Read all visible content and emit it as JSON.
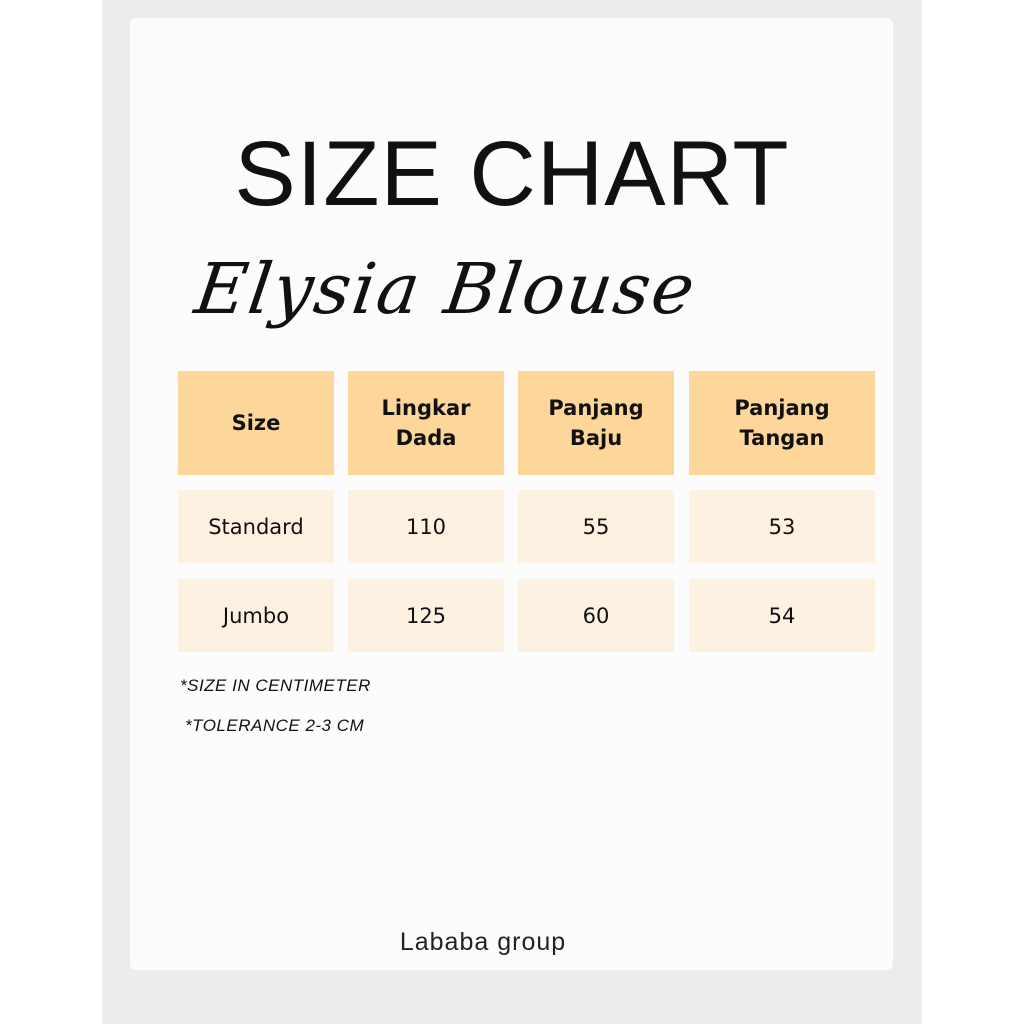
{
  "title": "SIZE CHART",
  "product_name": "Elysia Blouse",
  "table": {
    "headers": [
      "Size",
      "Lingkar\nDada",
      "Panjang\nBaju",
      "Panjang\nTangan"
    ],
    "rows": [
      [
        "Standard",
        "110",
        "55",
        "53"
      ],
      [
        "Jumbo",
        "125",
        "60",
        "54"
      ]
    ]
  },
  "notes": [
    "*SIZE IN CENTIMETER",
    "*TOLERANCE 2-3 CM"
  ],
  "footer": "Lababa group",
  "colors": {
    "header_fill": "#fdd69a",
    "row_fill": "#fdf1e2"
  }
}
